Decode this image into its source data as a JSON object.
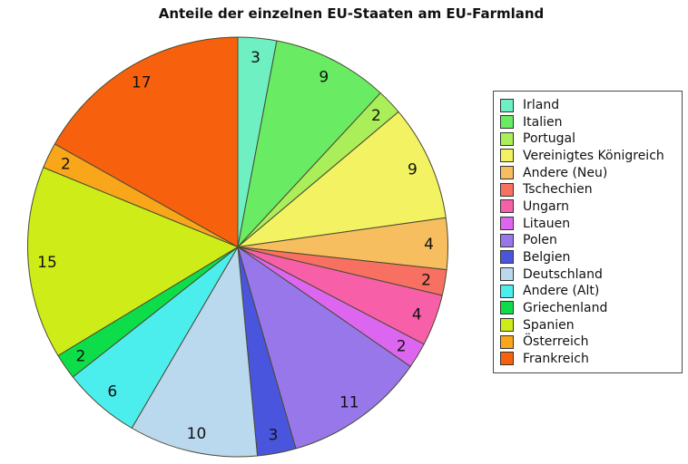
{
  "chart_data": {
    "type": "pie",
    "title": "Anteile der einzelnen EU-Staaten am EU-Farmland",
    "start_angle_deg": 90,
    "direction": "clockwise",
    "legend_position": "right",
    "slice_labels": "integer percentage values drawn inside wedges",
    "text_color": "#111111",
    "wedge_edge_color": "#4a4a33",
    "slices": [
      {
        "label": "Irland",
        "value": 3,
        "color": "#6EF0C3"
      },
      {
        "label": "Italien",
        "value": 9,
        "color": "#69EB64"
      },
      {
        "label": "Portugal",
        "value": 2,
        "color": "#AAEE5A"
      },
      {
        "label": "Vereinigtes Königreich",
        "value": 9,
        "color": "#F2F262"
      },
      {
        "label": "Andere (Neu)",
        "value": 4,
        "color": "#F7BE5F"
      },
      {
        "label": "Tschechien",
        "value": 2,
        "color": "#F87062"
      },
      {
        "label": "Ungarn",
        "value": 4,
        "color": "#F75FA8"
      },
      {
        "label": "Litauen",
        "value": 2,
        "color": "#DD66F0"
      },
      {
        "label": "Polen",
        "value": 11,
        "color": "#9877EA"
      },
      {
        "label": "Belgien",
        "value": 3,
        "color": "#4A55DE"
      },
      {
        "label": "Deutschland",
        "value": 10,
        "color": "#BBD9EE"
      },
      {
        "label": "Andere (Alt)",
        "value": 6,
        "color": "#4CEEED"
      },
      {
        "label": "Griechenland",
        "value": 2,
        "color": "#0EDD4A"
      },
      {
        "label": "Spanien",
        "value": 15,
        "color": "#CDEC18"
      },
      {
        "label": "Österreich",
        "value": 2,
        "color": "#F9A61B"
      },
      {
        "label": "Frankreich",
        "value": 17,
        "color": "#F7600D"
      }
    ]
  }
}
